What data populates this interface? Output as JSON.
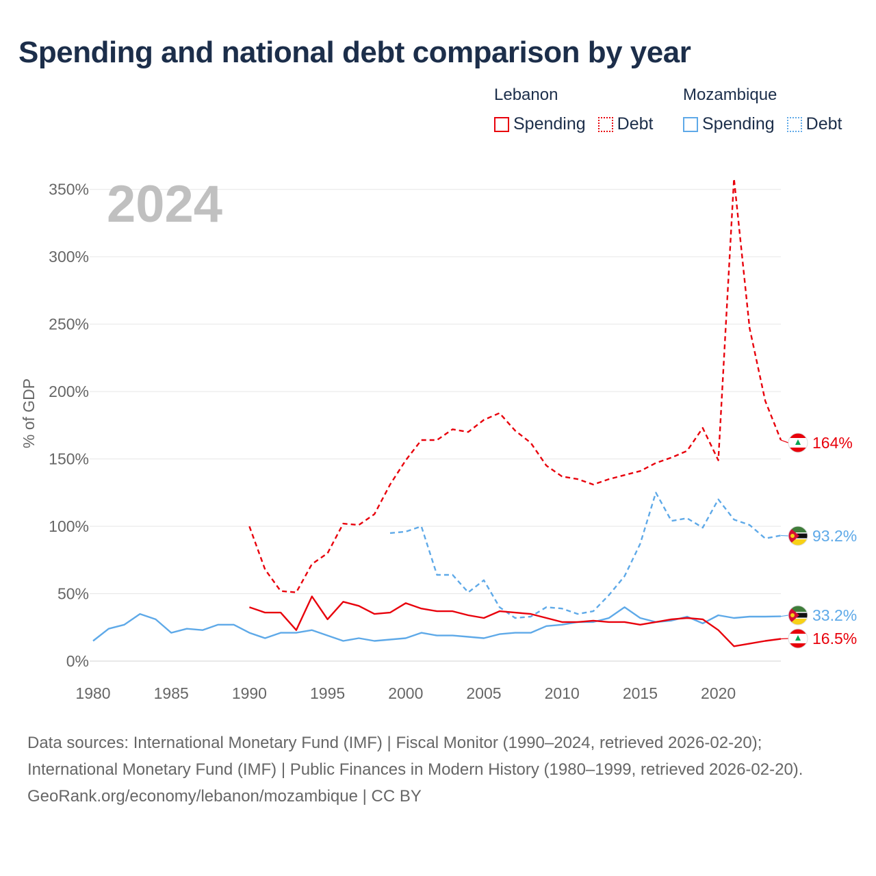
{
  "title": "Spending and national debt comparison by year",
  "legend": {
    "groups": [
      {
        "country": "Lebanon",
        "items": [
          "Spending",
          "Debt"
        ]
      },
      {
        "country": "Mozambique",
        "items": [
          "Spending",
          "Debt"
        ]
      }
    ]
  },
  "colors": {
    "lebanon": "#e8000b",
    "mozambique": "#5ea9e8",
    "year_watermark": "#c0c0c0",
    "grid": "#e6e6e6",
    "axis_text": "#666666"
  },
  "footer": {
    "sources": "Data sources: International Monetary Fund (IMF) | Fiscal Monitor (1990–2024, retrieved 2026-02-20); International Monetary Fund (IMF) | Public Finances in Modern History (1980–1999, retrieved 2026-02-20).",
    "credit": "GeoRank.org/economy/lebanon/mozambique | CC BY"
  },
  "chart_data": {
    "type": "line",
    "year_label": "2024",
    "ylabel": "% of GDP",
    "xlabel": "",
    "xlim": [
      1980,
      2024
    ],
    "ylim": [
      0,
      360
    ],
    "x_ticks": [
      1980,
      1985,
      1990,
      1995,
      2000,
      2005,
      2010,
      2015,
      2020
    ],
    "y_ticks": [
      0,
      50,
      100,
      150,
      200,
      250,
      300,
      350
    ],
    "y_tick_labels": [
      "0%",
      "50%",
      "100%",
      "150%",
      "200%",
      "250%",
      "300%",
      "350%"
    ],
    "series": [
      {
        "name": "Lebanon Debt",
        "country": "lebanon",
        "style": "dashed",
        "color": "#e8000b",
        "end_label": "164%",
        "x": [
          1990,
          1991,
          1992,
          1993,
          1994,
          1995,
          1996,
          1997,
          1998,
          1999,
          2000,
          2001,
          2002,
          2003,
          2004,
          2005,
          2006,
          2007,
          2008,
          2009,
          2010,
          2011,
          2012,
          2013,
          2014,
          2015,
          2016,
          2017,
          2018,
          2019,
          2020,
          2021,
          2022,
          2023,
          2024
        ],
        "values": [
          100,
          68,
          52,
          51,
          72,
          80,
          102,
          101,
          109,
          131,
          149,
          164,
          164,
          172,
          170,
          179,
          184,
          171,
          162,
          145,
          137,
          135,
          131,
          135,
          138,
          141,
          147,
          151,
          156,
          173,
          149,
          358,
          247,
          193,
          164
        ]
      },
      {
        "name": "Mozambique Debt",
        "country": "mozambique",
        "style": "dashed",
        "color": "#5ea9e8",
        "end_label": "93.2%",
        "x": [
          1999,
          2000,
          2001,
          2002,
          2003,
          2004,
          2005,
          2006,
          2007,
          2008,
          2009,
          2010,
          2011,
          2012,
          2013,
          2014,
          2015,
          2016,
          2017,
          2018,
          2019,
          2020,
          2021,
          2022,
          2023,
          2024
        ],
        "values": [
          95,
          96,
          100,
          64,
          64,
          51,
          60,
          40,
          32,
          33,
          40,
          39,
          35,
          37,
          49,
          63,
          87,
          125,
          104,
          106,
          99,
          120,
          105,
          101,
          91,
          93.2
        ]
      },
      {
        "name": "Mozambique Spending",
        "country": "mozambique",
        "style": "solid",
        "color": "#5ea9e8",
        "end_label": "33.2%",
        "x": [
          1980,
          1981,
          1982,
          1983,
          1984,
          1985,
          1986,
          1987,
          1988,
          1989,
          1990,
          1991,
          1992,
          1993,
          1994,
          1995,
          1996,
          1997,
          1998,
          1999,
          2000,
          2001,
          2002,
          2003,
          2004,
          2005,
          2006,
          2007,
          2008,
          2009,
          2010,
          2011,
          2012,
          2013,
          2014,
          2015,
          2016,
          2017,
          2018,
          2019,
          2020,
          2021,
          2022,
          2023,
          2024
        ],
        "values": [
          15,
          24,
          27,
          35,
          31,
          21,
          24,
          23,
          27,
          27,
          21,
          17,
          21,
          21,
          23,
          19,
          15,
          17,
          15,
          16,
          17,
          21,
          19,
          19,
          18,
          17,
          20,
          21,
          21,
          26,
          27,
          29,
          29,
          32,
          40,
          32,
          29,
          30,
          33,
          28,
          34,
          32,
          33,
          33,
          33.2
        ]
      },
      {
        "name": "Lebanon Spending",
        "country": "lebanon",
        "style": "solid",
        "color": "#e8000b",
        "end_label": "16.5%",
        "x": [
          1990,
          1991,
          1992,
          1993,
          1994,
          1995,
          1996,
          1997,
          1998,
          1999,
          2000,
          2001,
          2002,
          2003,
          2004,
          2005,
          2006,
          2007,
          2008,
          2009,
          2010,
          2011,
          2012,
          2013,
          2014,
          2015,
          2016,
          2017,
          2018,
          2019,
          2020,
          2021,
          2022,
          2023,
          2024
        ],
        "values": [
          40,
          36,
          36,
          23,
          48,
          31,
          44,
          41,
          35,
          36,
          43,
          39,
          37,
          37,
          34,
          32,
          37,
          36,
          35,
          32,
          29,
          29,
          30,
          29,
          29,
          27,
          29,
          31,
          32,
          31,
          23,
          11,
          13,
          15,
          16.5
        ]
      }
    ]
  }
}
